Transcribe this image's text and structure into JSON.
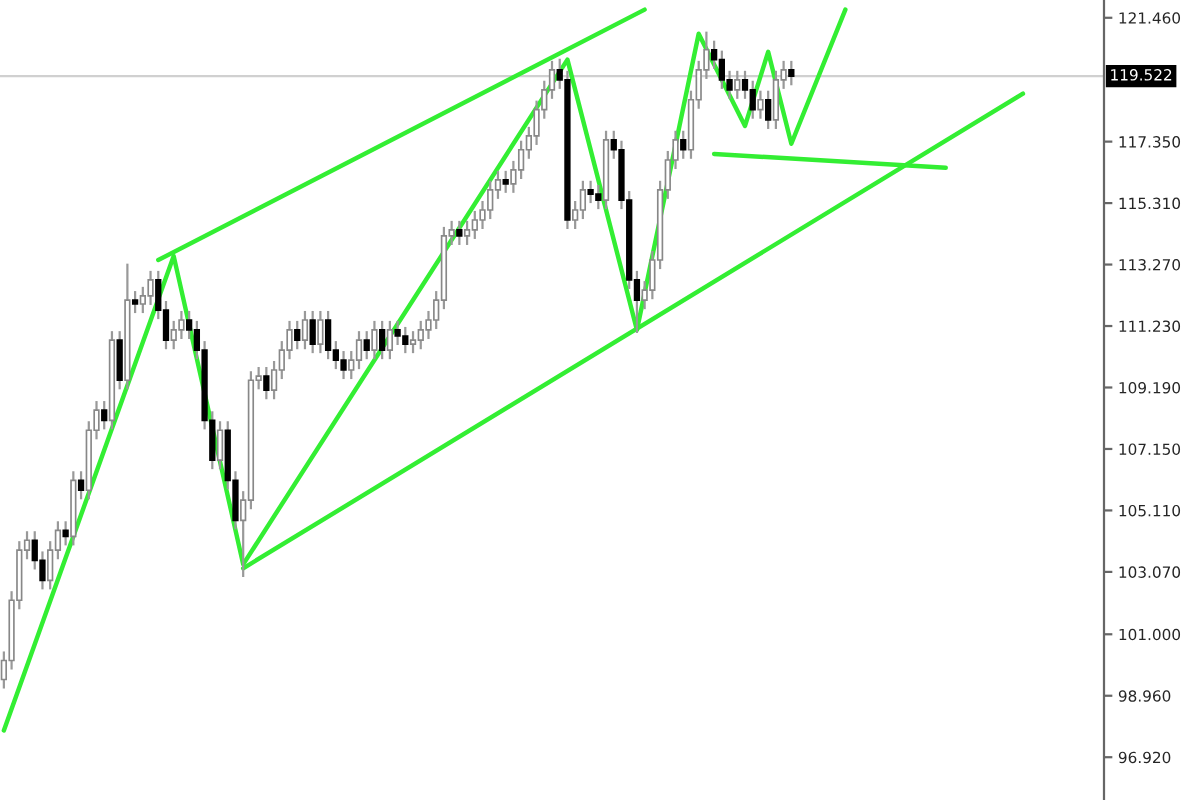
{
  "chart_data": {
    "type": "candlestick",
    "categories": [
      null,
      null,
      null,
      null,
      null,
      null,
      null,
      null,
      null,
      null,
      null,
      null,
      null,
      null,
      null,
      null,
      null,
      null,
      null,
      null,
      null,
      null,
      null,
      null,
      null,
      null,
      null,
      null,
      null,
      null,
      null,
      null,
      null,
      null,
      null,
      null,
      null,
      null,
      null,
      null,
      null,
      null,
      null,
      null,
      null,
      null,
      null,
      null,
      null,
      null,
      null,
      null,
      null,
      null,
      null,
      null,
      null,
      null,
      null,
      null,
      null,
      null,
      null,
      null,
      null,
      null,
      null,
      null,
      null,
      null,
      null,
      null,
      null,
      null,
      null,
      null,
      null,
      null,
      null,
      null,
      null,
      null,
      null,
      null,
      null,
      null,
      null,
      null,
      null,
      null,
      null,
      null,
      null,
      null,
      null,
      null,
      null,
      null,
      null,
      null,
      null,
      null,
      null,
      null,
      null,
      null,
      null,
      null,
      null,
      null,
      null,
      null,
      null,
      null,
      null,
      null,
      null,
      null,
      null,
      null,
      null,
      null,
      null,
      null,
      null,
      null,
      null,
      null,
      null,
      null,
      null,
      null,
      null,
      null,
      null,
      null,
      null,
      null,
      null,
      null,
      null,
      null,
      null
    ],
    "ohlc": [
      [
        99.5,
        100.43,
        99.2,
        100.13
      ],
      [
        100.13,
        102.43,
        99.83,
        102.13
      ],
      [
        102.13,
        104.09,
        101.83,
        103.79
      ],
      [
        103.79,
        104.42,
        103.49,
        104.12
      ],
      [
        104.12,
        104.42,
        103.15,
        103.45
      ],
      [
        103.45,
        103.75,
        102.49,
        102.79
      ],
      [
        102.79,
        104.09,
        102.49,
        103.79
      ],
      [
        103.79,
        104.75,
        103.49,
        104.45
      ],
      [
        104.45,
        104.75,
        103.95,
        104.25
      ],
      [
        104.25,
        106.41,
        103.95,
        106.11
      ],
      [
        106.11,
        106.41,
        105.48,
        105.78
      ],
      [
        105.78,
        108.07,
        105.48,
        107.77
      ],
      [
        107.77,
        108.74,
        107.47,
        108.44
      ],
      [
        108.44,
        108.74,
        107.8,
        108.1
      ],
      [
        108.1,
        111.06,
        107.8,
        110.76
      ],
      [
        110.76,
        111.06,
        109.13,
        109.43
      ],
      [
        109.43,
        113.3,
        109.13,
        112.09
      ],
      [
        112.09,
        112.39,
        111.66,
        111.96
      ],
      [
        111.96,
        112.53,
        111.66,
        112.23
      ],
      [
        112.23,
        113.06,
        111.93,
        112.76
      ],
      [
        112.76,
        113.06,
        111.46,
        111.76
      ],
      [
        111.76,
        112.06,
        110.46,
        110.76
      ],
      [
        110.76,
        111.4,
        110.46,
        111.1
      ],
      [
        111.1,
        111.73,
        110.8,
        111.43
      ],
      [
        111.43,
        111.73,
        110.8,
        111.1
      ],
      [
        111.1,
        111.4,
        110.13,
        110.43
      ],
      [
        110.43,
        110.73,
        107.8,
        108.1
      ],
      [
        108.1,
        108.4,
        106.48,
        106.78
      ],
      [
        106.78,
        108.07,
        106.48,
        107.77
      ],
      [
        107.77,
        108.07,
        105.81,
        106.11
      ],
      [
        106.11,
        106.41,
        104.48,
        104.78
      ],
      [
        104.78,
        105.75,
        102.9,
        105.45
      ],
      [
        105.45,
        109.73,
        105.15,
        109.43
      ],
      [
        109.43,
        109.87,
        109.13,
        109.57
      ],
      [
        109.57,
        109.87,
        108.8,
        109.1
      ],
      [
        109.1,
        110.07,
        108.8,
        109.77
      ],
      [
        109.77,
        110.73,
        109.47,
        110.43
      ],
      [
        110.43,
        111.4,
        110.13,
        111.1
      ],
      [
        111.1,
        111.4,
        110.46,
        110.76
      ],
      [
        110.76,
        111.73,
        110.46,
        111.43
      ],
      [
        111.43,
        111.73,
        110.33,
        110.63
      ],
      [
        110.63,
        111.73,
        110.33,
        111.43
      ],
      [
        111.43,
        111.73,
        110.13,
        110.43
      ],
      [
        110.43,
        110.73,
        109.8,
        110.1
      ],
      [
        110.1,
        110.4,
        109.47,
        109.77
      ],
      [
        109.77,
        110.4,
        109.47,
        110.1
      ],
      [
        110.1,
        111.06,
        109.8,
        110.76
      ],
      [
        110.76,
        111.06,
        110.13,
        110.43
      ],
      [
        110.43,
        111.4,
        110.13,
        111.1
      ],
      [
        111.1,
        111.4,
        110.13,
        110.43
      ],
      [
        110.43,
        111.4,
        110.13,
        111.1
      ],
      [
        111.1,
        111.4,
        110.6,
        110.9
      ],
      [
        110.9,
        111.2,
        110.33,
        110.63
      ],
      [
        110.63,
        111.06,
        110.33,
        110.76
      ],
      [
        110.76,
        111.4,
        110.46,
        111.1
      ],
      [
        111.1,
        111.73,
        110.8,
        111.43
      ],
      [
        111.43,
        112.39,
        111.13,
        112.09
      ],
      [
        112.09,
        114.52,
        111.79,
        114.22
      ],
      [
        114.22,
        114.72,
        113.92,
        114.42
      ],
      [
        114.42,
        114.72,
        113.92,
        114.22
      ],
      [
        114.22,
        114.72,
        113.92,
        114.42
      ],
      [
        114.42,
        115.05,
        114.12,
        114.75
      ],
      [
        114.75,
        115.38,
        114.45,
        115.08
      ],
      [
        115.08,
        116.05,
        114.78,
        115.75
      ],
      [
        115.75,
        116.38,
        115.45,
        116.08
      ],
      [
        116.08,
        116.38,
        115.65,
        115.95
      ],
      [
        115.95,
        116.71,
        115.65,
        116.41
      ],
      [
        116.41,
        117.38,
        116.11,
        117.08
      ],
      [
        117.08,
        117.84,
        116.78,
        117.54
      ],
      [
        117.54,
        118.71,
        117.24,
        118.41
      ],
      [
        118.41,
        119.37,
        118.11,
        119.07
      ],
      [
        119.07,
        120.03,
        118.77,
        119.73
      ],
      [
        119.73,
        120.1,
        119.1,
        119.4
      ],
      [
        119.4,
        119.7,
        114.45,
        114.75
      ],
      [
        114.75,
        115.38,
        114.45,
        115.08
      ],
      [
        115.08,
        116.05,
        114.78,
        115.75
      ],
      [
        115.75,
        116.05,
        115.31,
        115.61
      ],
      [
        115.61,
        115.91,
        115.11,
        115.41
      ],
      [
        115.41,
        117.71,
        115.11,
        117.41
      ],
      [
        117.41,
        117.71,
        116.78,
        117.08
      ],
      [
        117.08,
        117.38,
        115.11,
        115.41
      ],
      [
        115.41,
        115.71,
        112.46,
        112.76
      ],
      [
        112.76,
        113.06,
        111.0,
        112.09
      ],
      [
        112.09,
        112.72,
        111.79,
        112.42
      ],
      [
        112.42,
        113.72,
        112.12,
        113.42
      ],
      [
        113.42,
        116.05,
        113.12,
        115.75
      ],
      [
        115.75,
        117.04,
        115.45,
        116.74
      ],
      [
        116.74,
        117.71,
        116.44,
        117.41
      ],
      [
        117.41,
        117.71,
        116.78,
        117.08
      ],
      [
        117.08,
        119.04,
        116.78,
        118.74
      ],
      [
        118.74,
        120.03,
        118.44,
        119.73
      ],
      [
        119.73,
        121.0,
        119.43,
        120.4
      ],
      [
        120.4,
        120.7,
        119.77,
        120.07
      ],
      [
        120.07,
        120.37,
        119.1,
        119.4
      ],
      [
        119.4,
        119.7,
        118.77,
        119.07
      ],
      [
        119.07,
        119.7,
        118.77,
        119.4
      ],
      [
        119.4,
        119.7,
        118.77,
        119.07
      ],
      [
        119.07,
        119.37,
        118.11,
        118.41
      ],
      [
        118.41,
        119.04,
        118.11,
        118.74
      ],
      [
        118.74,
        119.04,
        117.77,
        118.07
      ],
      [
        118.07,
        119.7,
        117.77,
        119.4
      ],
      [
        119.4,
        120.03,
        119.1,
        119.73
      ],
      [
        119.73,
        120.03,
        119.22,
        119.52
      ],
      null,
      null,
      null,
      null,
      null,
      null,
      null,
      null,
      null,
      null,
      null,
      null,
      null,
      null,
      null,
      null,
      null,
      null,
      null,
      null,
      null,
      null,
      null,
      null,
      null,
      null,
      null,
      null,
      null,
      null,
      null,
      null,
      null,
      null,
      null,
      null,
      null,
      null,
      null,
      null
    ],
    "series": [
      {
        "type": "line",
        "color": "#33ee33",
        "values": [
          97.81,
          null,
          null,
          null,
          null,
          null,
          null,
          null,
          null,
          null,
          null,
          null,
          null,
          null,
          null,
          null,
          null,
          null,
          null,
          null,
          null,
          null,
          113.55,
          null,
          null,
          null,
          null,
          null,
          null,
          null,
          null,
          103.32,
          null,
          null,
          null,
          null,
          null,
          null,
          null,
          null,
          null,
          null,
          null,
          null,
          null,
          null,
          null,
          null,
          null,
          null,
          null,
          null,
          null,
          null,
          null,
          null,
          null,
          null,
          null,
          null,
          null,
          null,
          null,
          null,
          null,
          null,
          null,
          null,
          null,
          null,
          null,
          null,
          null,
          120.07,
          null,
          null,
          null,
          null,
          null,
          null,
          null,
          null,
          111.1,
          null,
          null,
          null,
          null,
          null,
          null,
          null,
          120.93,
          null,
          null,
          null,
          null,
          null,
          117.87,
          null,
          null,
          120.33,
          null,
          null,
          117.28,
          null,
          null,
          null,
          null,
          null,
          null,
          121.73,
          null,
          null,
          null,
          null,
          null,
          null,
          null,
          null,
          null,
          null,
          null,
          null,
          null,
          null,
          null,
          null,
          null,
          null,
          null,
          null,
          null,
          null,
          null,
          null,
          null,
          null,
          null,
          null,
          null,
          null,
          null,
          null,
          null
        ]
      },
      {
        "type": "line",
        "color": "#33ee33",
        "values": [
          null,
          null,
          null,
          null,
          null,
          null,
          null,
          null,
          null,
          null,
          null,
          null,
          null,
          null,
          null,
          null,
          null,
          null,
          null,
          null,
          113.42,
          null,
          null,
          null,
          null,
          null,
          null,
          null,
          null,
          null,
          null,
          null,
          null,
          null,
          null,
          null,
          null,
          null,
          null,
          null,
          null,
          null,
          null,
          null,
          null,
          null,
          null,
          null,
          null,
          null,
          null,
          null,
          null,
          null,
          null,
          null,
          null,
          null,
          null,
          null,
          null,
          null,
          null,
          null,
          null,
          null,
          null,
          null,
          null,
          null,
          null,
          null,
          null,
          null,
          null,
          null,
          null,
          null,
          null,
          null,
          null,
          null,
          null,
          121.73,
          null,
          null,
          null,
          null,
          null,
          null,
          null,
          null,
          null,
          null,
          null,
          null,
          null,
          null,
          null,
          null,
          null,
          null,
          null,
          null,
          null,
          null,
          null,
          null,
          null,
          null,
          null,
          null,
          null,
          null,
          null,
          null,
          null,
          null,
          null,
          null,
          null,
          null,
          null,
          null,
          null,
          null,
          null,
          null,
          null,
          null,
          null,
          null,
          null,
          null,
          null,
          null,
          null,
          null,
          null,
          null,
          null,
          null,
          null
        ]
      },
      {
        "type": "line",
        "color": "#33ee33",
        "values": [
          null,
          null,
          null,
          null,
          null,
          null,
          null,
          null,
          null,
          null,
          null,
          null,
          null,
          null,
          null,
          null,
          null,
          null,
          null,
          null,
          null,
          null,
          null,
          null,
          null,
          null,
          null,
          null,
          null,
          null,
          null,
          103.19,
          null,
          null,
          null,
          null,
          null,
          null,
          null,
          null,
          null,
          null,
          null,
          null,
          null,
          null,
          null,
          null,
          null,
          null,
          null,
          null,
          null,
          null,
          null,
          null,
          null,
          null,
          null,
          null,
          null,
          null,
          null,
          null,
          null,
          null,
          null,
          null,
          null,
          null,
          null,
          null,
          null,
          null,
          null,
          null,
          null,
          null,
          null,
          null,
          null,
          null,
          null,
          null,
          null,
          null,
          null,
          null,
          null,
          null,
          null,
          null,
          null,
          null,
          null,
          null,
          null,
          null,
          null,
          null,
          null,
          null,
          null,
          null,
          null,
          null,
          null,
          null,
          null,
          null,
          null,
          null,
          null,
          null,
          null,
          null,
          null,
          null,
          null,
          null,
          null,
          null,
          null,
          null,
          null,
          null,
          null,
          null,
          null,
          null,
          null,
          null,
          118.94,
          null,
          null,
          null,
          null,
          null,
          null,
          null,
          null,
          null,
          null
        ]
      },
      {
        "type": "line",
        "color": "#33ee33",
        "values": [
          null,
          null,
          null,
          null,
          null,
          null,
          null,
          null,
          null,
          null,
          null,
          null,
          null,
          null,
          null,
          null,
          null,
          null,
          null,
          null,
          null,
          null,
          null,
          null,
          null,
          null,
          null,
          null,
          null,
          null,
          null,
          null,
          null,
          null,
          null,
          null,
          null,
          null,
          null,
          null,
          null,
          null,
          null,
          null,
          null,
          null,
          null,
          null,
          null,
          null,
          null,
          null,
          null,
          null,
          null,
          null,
          null,
          null,
          null,
          null,
          null,
          null,
          null,
          null,
          null,
          null,
          null,
          null,
          null,
          null,
          null,
          null,
          null,
          null,
          null,
          null,
          null,
          null,
          null,
          null,
          null,
          null,
          null,
          null,
          null,
          null,
          null,
          null,
          null,
          null,
          null,
          null,
          116.94,
          null,
          null,
          null,
          null,
          null,
          null,
          null,
          null,
          null,
          null,
          null,
          null,
          null,
          null,
          null,
          null,
          null,
          null,
          null,
          null,
          null,
          null,
          null,
          null,
          null,
          null,
          null,
          null,
          null,
          116.48,
          null,
          null,
          null,
          null,
          null,
          null,
          null,
          null,
          null,
          null,
          null,
          null,
          null,
          null,
          null,
          null,
          null,
          null,
          null,
          null
        ]
      }
    ],
    "ylim": [
      95.5,
      122.05
    ],
    "yticks": [
      {
        "value": 121.46,
        "label": "121.460"
      },
      {
        "value": 117.35,
        "label": "117.350"
      },
      {
        "value": 115.31,
        "label": "115.310"
      },
      {
        "value": 113.27,
        "label": "113.270"
      },
      {
        "value": 111.23,
        "label": "111.230"
      },
      {
        "value": 109.19,
        "label": "109.190"
      },
      {
        "value": 107.15,
        "label": "107.150"
      },
      {
        "value": 105.11,
        "label": "105.110"
      },
      {
        "value": 103.07,
        "label": "103.070"
      },
      {
        "value": 101.0,
        "label": "101.000"
      },
      {
        "value": 98.96,
        "label": "98.960"
      },
      {
        "value": 96.92,
        "label": "96.920"
      }
    ],
    "ref_lines": [
      {
        "axis": "y",
        "value": 119.522,
        "label": "119.522",
        "color": "#d0d0d0"
      }
    ],
    "tick_labels": "y",
    "grid": false,
    "line_style": "solid",
    "marker": "none"
  }
}
